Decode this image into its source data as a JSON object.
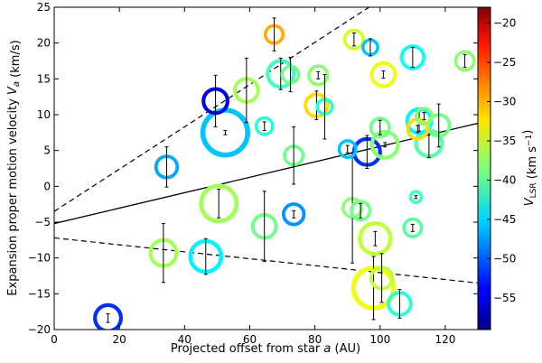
{
  "chart_data": {
    "type": "scatter",
    "title": "",
    "xlabel": "Projected offset from star a (AU)",
    "ylabel": "Expansion proper motion velocity V_a (km/s)",
    "xlim": [
      0,
      130
    ],
    "ylim": [
      -20,
      25
    ],
    "xticks": [
      0,
      20,
      40,
      60,
      80,
      100,
      120
    ],
    "yticks": [
      -20,
      -15,
      -10,
      -5,
      0,
      5,
      10,
      15,
      20,
      25
    ],
    "grid": false,
    "colorbar": {
      "label": "V_LSR (km s^-1)",
      "range": [
        -59,
        -18
      ],
      "ticks": [
        -55,
        -50,
        -45,
        -40,
        -35,
        -30,
        -25,
        -20
      ],
      "colormap": "jet"
    },
    "fit_line": {
      "x": [
        0,
        130
      ],
      "y": [
        -5.2,
        8.8
      ]
    },
    "bound_lines": [
      {
        "x": [
          0,
          100
        ],
        "y": [
          -3.5,
          26.0
        ]
      },
      {
        "x": [
          0,
          130
        ],
        "y": [
          -7.2,
          -13.5
        ]
      }
    ],
    "points": [
      {
        "x": 16.5,
        "y": -18.4,
        "err": 0.6,
        "v": -52,
        "size": 2
      },
      {
        "x": 33.5,
        "y": -9.3,
        "err": 4.1,
        "v": -37,
        "size": 2
      },
      {
        "x": 34.5,
        "y": 2.7,
        "err": 2.8,
        "v": -47,
        "size": 1.5
      },
      {
        "x": 46.5,
        "y": -9.8,
        "err": 2.5,
        "v": -44,
        "size": 2.5
      },
      {
        "x": 49.5,
        "y": 11.9,
        "err": 3.6,
        "v": -55,
        "size": 1.8
      },
      {
        "x": 50.5,
        "y": -2.4,
        "err": 2.0,
        "v": -37,
        "size": 3
      },
      {
        "x": 52.5,
        "y": 7.5,
        "err": 0.3,
        "v": -46,
        "size": 4
      },
      {
        "x": 59.0,
        "y": 13.4,
        "err": 4.5,
        "v": -37,
        "size": 1.7
      },
      {
        "x": 64.5,
        "y": 8.4,
        "err": 0.6,
        "v": -42,
        "size": 1.0
      },
      {
        "x": 64.5,
        "y": -5.6,
        "err": 4.9,
        "v": -39,
        "size": 1.7
      },
      {
        "x": 67.5,
        "y": 21.2,
        "err": 2.3,
        "v": -30,
        "size": 1.1
      },
      {
        "x": 69.5,
        "y": 15.7,
        "err": 2.2,
        "v": -41,
        "size": 2
      },
      {
        "x": 72.5,
        "y": 15.6,
        "err": 2.4,
        "v": -39,
        "size": 1
      },
      {
        "x": 73.5,
        "y": -3.9,
        "err": 0.5,
        "v": -48,
        "size": 1.4
      },
      {
        "x": 73.5,
        "y": 4.3,
        "err": 4.0,
        "v": -39,
        "size": 1.2
      },
      {
        "x": 80.5,
        "y": 11.3,
        "err": 2.0,
        "v": -32,
        "size": 1.6
      },
      {
        "x": 81.0,
        "y": 15.5,
        "err": 0.5,
        "v": -38,
        "size": 1.2
      },
      {
        "x": 83.0,
        "y": 11.1,
        "err": 4.5,
        "v": -42,
        "size": 0.8
      },
      {
        "x": 90.0,
        "y": 5.2,
        "err": 0.5,
        "v": -46,
        "size": 1.0
      },
      {
        "x": 91.5,
        "y": -3.0,
        "err": 7.7,
        "v": -38,
        "size": 1.2
      },
      {
        "x": 92.0,
        "y": 20.5,
        "err": 0.9,
        "v": -35,
        "size": 1.2
      },
      {
        "x": 94.0,
        "y": -3.4,
        "err": 1.0,
        "v": -39,
        "size": 1.2
      },
      {
        "x": 96.0,
        "y": 4.8,
        "err": 2.3,
        "v": -52,
        "size": 2
      },
      {
        "x": 97.0,
        "y": 19.4,
        "err": 1.2,
        "v": -46,
        "size": 0.8
      },
      {
        "x": 98.0,
        "y": -14.2,
        "err": 4.4,
        "v": -34,
        "size": 3.5
      },
      {
        "x": 98.5,
        "y": -7.3,
        "err": 1.0,
        "v": -36,
        "size": 2.5
      },
      {
        "x": 100.0,
        "y": 8.2,
        "err": 1.0,
        "v": -39,
        "size": 1.2
      },
      {
        "x": 100.5,
        "y": -12.8,
        "err": 3.4,
        "v": -36,
        "size": 1.5
      },
      {
        "x": 101.5,
        "y": 5.8,
        "err": 0.3,
        "v": -38,
        "size": 2
      },
      {
        "x": 101.0,
        "y": 15.6,
        "err": 0.5,
        "v": -34,
        "size": 1.7
      },
      {
        "x": 106.0,
        "y": -16.4,
        "err": 2.0,
        "v": -42,
        "size": 1.6
      },
      {
        "x": 110.0,
        "y": 18.0,
        "err": 1.4,
        "v": -43,
        "size": 1.6
      },
      {
        "x": 110.0,
        "y": -5.8,
        "err": 0.5,
        "v": -40,
        "size": 1.1
      },
      {
        "x": 111.0,
        "y": -1.5,
        "err": 0.2,
        "v": -41,
        "size": 0.4
      },
      {
        "x": 112.0,
        "y": 9.1,
        "err": 1.4,
        "v": -44,
        "size": 1.8
      },
      {
        "x": 111.5,
        "y": 8.0,
        "err": 0.5,
        "v": -32,
        "size": 1.3
      },
      {
        "x": 113.5,
        "y": 9.8,
        "err": 0.5,
        "v": -38,
        "size": 0.9
      },
      {
        "x": 115.0,
        "y": 6.0,
        "err": 2.0,
        "v": -40,
        "size": 2
      },
      {
        "x": 118.0,
        "y": 8.5,
        "err": 3.0,
        "v": -39,
        "size": 1.5
      },
      {
        "x": 126.0,
        "y": 17.5,
        "err": 0.9,
        "v": -38,
        "size": 1.2
      }
    ]
  }
}
